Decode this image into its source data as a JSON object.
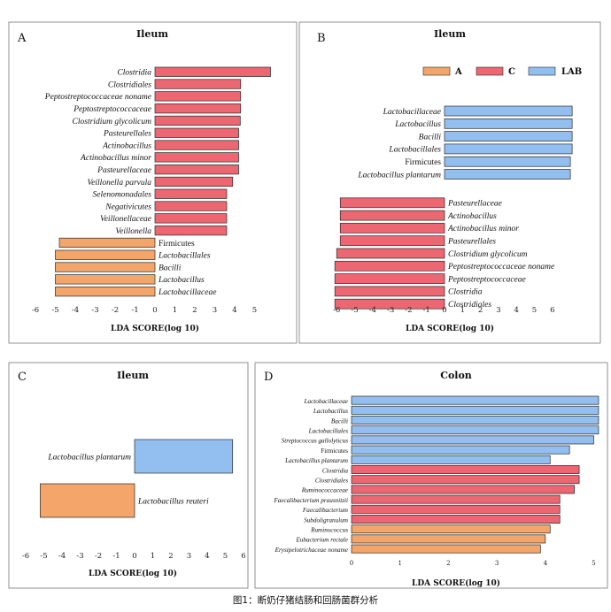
{
  "colors": {
    "A": "#f3a56a",
    "C": "#ec6771",
    "LAB": "#92bff0",
    "edge": "#2a2a2a"
  },
  "legend": [
    {
      "key": "A",
      "label": "A"
    },
    {
      "key": "C",
      "label": "C"
    },
    {
      "key": "LAB",
      "label": "LAB"
    }
  ],
  "caption": "图1：断奶仔猪结肠和回肠菌群分析",
  "chart_data": [
    {
      "id": "A",
      "panel_letter": "A",
      "type": "bar",
      "orientation": "horizontal",
      "title": "Ileum",
      "xlabel": "LDA SCORE(log 10)",
      "xlim": [
        -6.5,
        6.3
      ],
      "xticks": [
        -6,
        -5,
        -4,
        -3,
        -2,
        -1,
        0,
        1,
        2,
        3,
        4,
        5
      ],
      "bars": [
        {
          "name": "Clostridia",
          "value": 5.8,
          "group": "C",
          "italic": true
        },
        {
          "name": "Clostridiales",
          "value": 4.3,
          "group": "C",
          "italic": true
        },
        {
          "name": "Peptostreptococcaceae noname",
          "value": 4.3,
          "group": "C",
          "italic": true
        },
        {
          "name": "Peptostreptococcaceae",
          "value": 4.3,
          "group": "C",
          "italic": true
        },
        {
          "name": "Clostridium glycolicum",
          "value": 4.28,
          "group": "C",
          "italic": true
        },
        {
          "name": "Pasteurellales",
          "value": 4.2,
          "group": "C",
          "italic": true
        },
        {
          "name": "Actinobacillus",
          "value": 4.2,
          "group": "C",
          "italic": true
        },
        {
          "name": "Actinobacillus minor",
          "value": 4.2,
          "group": "C",
          "italic": true
        },
        {
          "name": "Pasteurellaceae",
          "value": 4.2,
          "group": "C",
          "italic": true
        },
        {
          "name": "Veillonella parvula",
          "value": 3.9,
          "group": "C",
          "italic": true
        },
        {
          "name": "Selenomonadales",
          "value": 3.6,
          "group": "C",
          "italic": true
        },
        {
          "name": "Negativicutes",
          "value": 3.6,
          "group": "C",
          "italic": true
        },
        {
          "name": "Veillonellaceae",
          "value": 3.6,
          "group": "C",
          "italic": true
        },
        {
          "name": "Veillonella",
          "value": 3.6,
          "group": "C",
          "italic": true
        },
        {
          "name": "Firmicutes",
          "value": -4.8,
          "group": "A",
          "italic": false
        },
        {
          "name": "Lactobacillales",
          "value": -5.0,
          "group": "A",
          "italic": true
        },
        {
          "name": "Bacilli",
          "value": -5.0,
          "group": "A",
          "italic": true
        },
        {
          "name": "Lactobacillus",
          "value": -5.0,
          "group": "A",
          "italic": true
        },
        {
          "name": "Lactobacillaceae",
          "value": -5.0,
          "group": "A",
          "italic": true
        }
      ]
    },
    {
      "id": "B",
      "panel_letter": "B",
      "type": "bar",
      "orientation": "horizontal",
      "title": "Ileum",
      "xlabel": "LDA SCORE(log 10)",
      "xlim": [
        -7,
        7.5
      ],
      "xticks": [
        -6,
        -5,
        -4,
        -3,
        -2,
        -1,
        0,
        1,
        2,
        3,
        4,
        5,
        6
      ],
      "legend_position": "top",
      "bars": [
        {
          "name": "Lactobacillaceae",
          "value": 7.1,
          "group": "LAB",
          "italic": true
        },
        {
          "name": "Lactobacillus",
          "value": 7.1,
          "group": "LAB",
          "italic": true
        },
        {
          "name": "Bacilli",
          "value": 7.1,
          "group": "LAB",
          "italic": true
        },
        {
          "name": "Lactobacillales",
          "value": 7.1,
          "group": "LAB",
          "italic": true
        },
        {
          "name": "Firmicutes",
          "value": 7.0,
          "group": "LAB",
          "italic": false
        },
        {
          "name": "Lactobacillus plantarum",
          "value": 7.0,
          "group": "LAB",
          "italic": true
        },
        {
          "name": "Pasteurellaceae",
          "value": -5.8,
          "group": "C",
          "italic": true
        },
        {
          "name": "Actinobacillus",
          "value": -5.8,
          "group": "C",
          "italic": true
        },
        {
          "name": "Actinobacillus minor",
          "value": -5.8,
          "group": "C",
          "italic": true
        },
        {
          "name": "Pasteurellales",
          "value": -5.8,
          "group": "C",
          "italic": true
        },
        {
          "name": "Clostridium glycolicum",
          "value": -6.0,
          "group": "C",
          "italic": true
        },
        {
          "name": "Peptostreptococcaceae noname",
          "value": -6.1,
          "group": "C",
          "italic": true
        },
        {
          "name": "Peptostreptococcaceae",
          "value": -6.1,
          "group": "C",
          "italic": true
        },
        {
          "name": "Clostridia",
          "value": -6.1,
          "group": "C",
          "italic": true
        },
        {
          "name": "Clostridiales",
          "value": -6.1,
          "group": "C",
          "italic": true
        }
      ]
    },
    {
      "id": "C",
      "panel_letter": "C",
      "type": "bar",
      "orientation": "horizontal",
      "title": "Ileum",
      "xlabel": "LDA SCORE(log 10)",
      "xlim": [
        -6.5,
        6.5
      ],
      "xticks": [
        -6,
        -5,
        -4,
        -3,
        -2,
        -1,
        0,
        1,
        2,
        3,
        4,
        5,
        6
      ],
      "bars": [
        {
          "name": "Lactobacillus plantarum",
          "value": 5.4,
          "group": "LAB",
          "italic": true
        },
        {
          "name": "Lactobacillus reuteri",
          "value": -5.2,
          "group": "A",
          "italic": true
        }
      ]
    },
    {
      "id": "D",
      "panel_letter": "D",
      "type": "bar",
      "orientation": "horizontal",
      "title": "Colon",
      "xlabel": "LDA SCORE(log 10)",
      "xlim": [
        0,
        5
      ],
      "xticks": [
        0,
        1,
        2,
        3,
        4,
        5
      ],
      "bars": [
        {
          "name": "Lactobacillaceae",
          "value": 5.1,
          "group": "LAB",
          "italic": true
        },
        {
          "name": "Lactobacillus",
          "value": 5.1,
          "group": "LAB",
          "italic": true
        },
        {
          "name": "Bacilli",
          "value": 5.1,
          "group": "LAB",
          "italic": true
        },
        {
          "name": "Lactobacillales",
          "value": 5.1,
          "group": "LAB",
          "italic": true
        },
        {
          "name": "Streptococcus gallolyticus",
          "value": 5.0,
          "group": "LAB",
          "italic": true
        },
        {
          "name": "Firmicutes",
          "value": 4.5,
          "group": "LAB",
          "italic": false
        },
        {
          "name": "Lactobacillus plantarum",
          "value": 4.1,
          "group": "LAB",
          "italic": true
        },
        {
          "name": "Clostridia",
          "value": 4.7,
          "group": "C",
          "italic": true
        },
        {
          "name": "Clostridiales",
          "value": 4.7,
          "group": "C",
          "italic": true
        },
        {
          "name": "Ruminococcaceae",
          "value": 4.6,
          "group": "C",
          "italic": true
        },
        {
          "name": "Faecalibacterium prausnitzii",
          "value": 4.3,
          "group": "C",
          "italic": true
        },
        {
          "name": "Faecalibacterium",
          "value": 4.3,
          "group": "C",
          "italic": true
        },
        {
          "name": "Subdoligranulum",
          "value": 4.3,
          "group": "C",
          "italic": true
        },
        {
          "name": "Ruminococcus",
          "value": 4.1,
          "group": "A",
          "italic": true
        },
        {
          "name": "Eubacterium rectale",
          "value": 4.0,
          "group": "A",
          "italic": true
        },
        {
          "name": "Erysipelotrichaceae noname",
          "value": 3.9,
          "group": "A",
          "italic": true
        }
      ]
    }
  ]
}
